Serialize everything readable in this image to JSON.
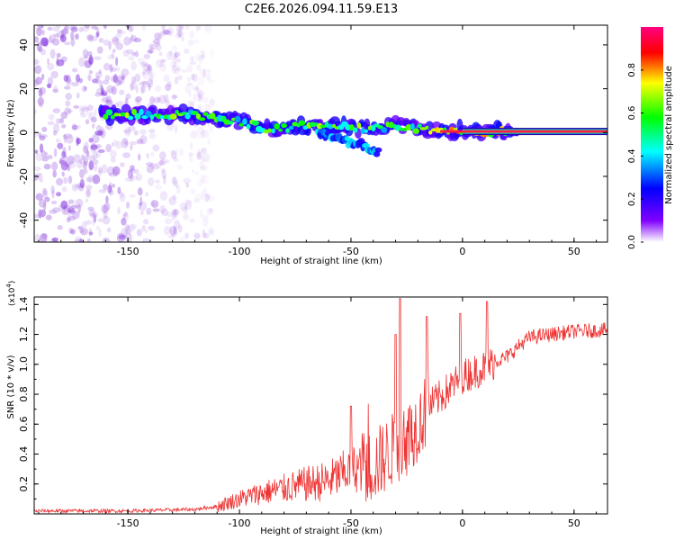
{
  "title": "C2E6.2026.094.11.59.E13",
  "chart_data": [
    {
      "type": "heatmap",
      "name": "spectrogram",
      "xlabel": "Height of straight line (km)",
      "ylabel": "Frequency (Hz)",
      "xlim": [
        -192,
        65
      ],
      "ylim": [
        -50,
        49
      ],
      "xticks": [
        -150,
        -100,
        -50,
        0,
        50
      ],
      "xtick_labels": [
        "-150",
        "-100",
        "-50",
        "0",
        "50"
      ],
      "yticks": [
        -40,
        -20,
        0,
        20,
        40
      ],
      "ytick_labels": [
        "-40",
        "-20",
        "0",
        "20",
        "40"
      ],
      "colorbar": {
        "label": "Normalized spectral amplitude",
        "range": [
          0,
          1
        ],
        "ticks": [
          0.0,
          0.2,
          0.4,
          0.6,
          0.8
        ],
        "tick_labels": [
          "0.0",
          "0.2",
          "0.4",
          "0.6",
          "0.8"
        ],
        "colormap": [
          "#ffffff",
          "#8000ff",
          "#0000ff",
          "#00ffff",
          "#00ff00",
          "#ffff00",
          "#ff0000",
          "#ff0080"
        ]
      },
      "trace": {
        "points": [
          [
            -160,
            8
          ],
          [
            -140,
            8
          ],
          [
            -120,
            8
          ],
          [
            -105,
            6
          ],
          [
            -95,
            4
          ],
          [
            -85,
            1
          ],
          [
            -75,
            3
          ],
          [
            -60,
            3
          ],
          [
            -45,
            2
          ],
          [
            -30,
            3
          ],
          [
            -20,
            2
          ],
          [
            -10,
            1
          ],
          [
            0,
            1
          ],
          [
            10,
            0.5
          ],
          [
            25,
            0.5
          ],
          [
            65,
            0.5
          ]
        ],
        "secondary_points": [
          [
            -65,
            0
          ],
          [
            -55,
            -3
          ],
          [
            -45,
            -6
          ],
          [
            -37,
            -9
          ]
        ]
      }
    },
    {
      "type": "line",
      "name": "snr",
      "xlabel": "Height of straight line (km)",
      "ylabel": "SNR (10 * v/v)",
      "y_multiplier": "(x10",
      "y_multiplier_exp": "4",
      "xlim": [
        -192,
        65
      ],
      "ylim": [
        0,
        1.45
      ],
      "xticks": [
        -150,
        -100,
        -50,
        0,
        50
      ],
      "xtick_labels": [
        "-150",
        "-100",
        "-50",
        "0",
        "50"
      ],
      "yticks": [
        0.2,
        0.4,
        0.6,
        0.8,
        1.0,
        1.2,
        1.4
      ],
      "ytick_labels": [
        "0.2",
        "0.4",
        "0.6",
        "0.8",
        "1.0",
        "1.2",
        "1.4"
      ],
      "color": "#ee3333",
      "baseline": [
        [
          -192,
          0.02
        ],
        [
          -150,
          0.02
        ],
        [
          -120,
          0.03
        ],
        [
          -110,
          0.05
        ],
        [
          -100,
          0.1
        ],
        [
          -90,
          0.14
        ],
        [
          -80,
          0.17
        ],
        [
          -70,
          0.2
        ],
        [
          -60,
          0.22
        ],
        [
          -50,
          0.3
        ],
        [
          -40,
          0.32
        ],
        [
          -35,
          0.38
        ],
        [
          -30,
          0.45
        ],
        [
          -25,
          0.5
        ],
        [
          -20,
          0.6
        ],
        [
          -15,
          0.72
        ],
        [
          -10,
          0.78
        ],
        [
          -5,
          0.85
        ],
        [
          0,
          0.92
        ],
        [
          10,
          0.98
        ],
        [
          15,
          1.02
        ],
        [
          20,
          1.05
        ],
        [
          25,
          1.12
        ],
        [
          30,
          1.18
        ],
        [
          40,
          1.2
        ],
        [
          50,
          1.22
        ],
        [
          65,
          1.23
        ]
      ],
      "spikes": [
        [
          -28,
          1.44
        ],
        [
          -30,
          1.2
        ],
        [
          -16,
          1.32
        ],
        [
          -1,
          1.34
        ],
        [
          11,
          1.42
        ],
        [
          -50,
          0.72
        ],
        [
          5,
          0.9
        ]
      ]
    }
  ]
}
